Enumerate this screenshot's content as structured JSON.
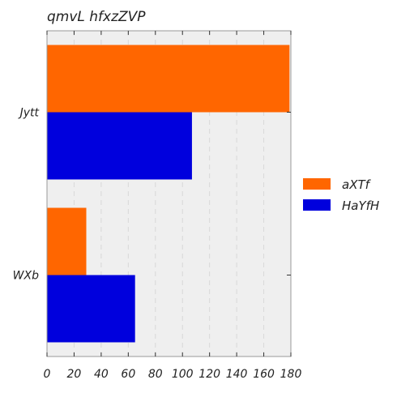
{
  "chart_data": {
    "type": "bar",
    "orientation": "horizontal",
    "title": "qmvL  hfxzZVP",
    "xlabel": "",
    "ylabel": "",
    "categories": [
      "Jytt",
      "WXb"
    ],
    "series": [
      {
        "name": "aXTf",
        "color": "#ff6600",
        "values": [
          179,
          29
        ]
      },
      {
        "name": "HaYfH",
        "color": "#0000dd",
        "values": [
          107,
          65
        ]
      }
    ],
    "xlim": [
      0,
      180
    ],
    "xticks": [
      0,
      20,
      40,
      60,
      80,
      100,
      120,
      140,
      160,
      180
    ],
    "grid": true,
    "legend_position": "right",
    "plot_background": "#efefef"
  }
}
